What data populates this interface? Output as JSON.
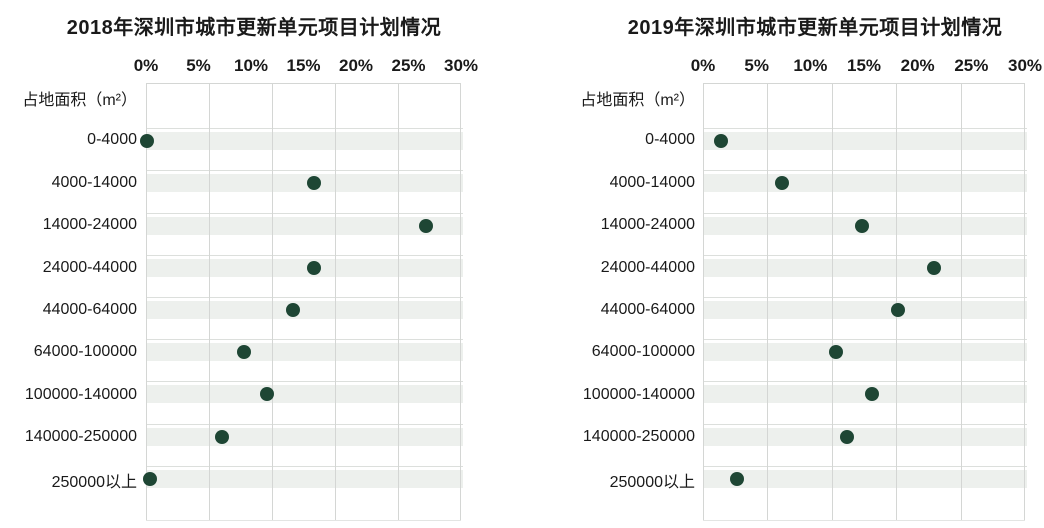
{
  "page": {
    "background": "#ffffff"
  },
  "colors": {
    "dot": "#1e4634",
    "band": "#edf0ed",
    "band_edge": "#dcdfdc",
    "gridline": "#d4d6d4",
    "text": "#1a1a1a"
  },
  "chart_data": [
    {
      "type": "scatter",
      "title": "2018年深圳市城市更新单元项目计划情况",
      "ylabel": "占地面积（m²）",
      "xlabel": "",
      "x_axis_position": "top",
      "x_ticks": [
        "0%",
        "5%",
        "10%",
        "15%",
        "20%",
        "25%",
        "30%"
      ],
      "xlim": [
        0,
        30
      ],
      "x_unit": "percent",
      "grid": true,
      "legend": "none",
      "categories": [
        "0-4000",
        "4000-14000",
        "14000-24000",
        "24000-44000",
        "44000-64000",
        "64000-100000",
        "100000-140000",
        "140000-250000",
        "250000以上"
      ],
      "values": [
        0.1,
        16.0,
        26.7,
        16.0,
        14.0,
        9.3,
        11.5,
        7.2,
        0.4
      ]
    },
    {
      "type": "scatter",
      "title": "2019年深圳市城市更新单元项目计划情况",
      "ylabel": "占地面积（m²）",
      "xlabel": "",
      "x_axis_position": "top",
      "x_ticks": [
        "0%",
        "5%",
        "10%",
        "15%",
        "20%",
        "25%",
        "30%"
      ],
      "xlim": [
        0,
        30
      ],
      "x_unit": "percent",
      "grid": true,
      "legend": "none",
      "categories": [
        "0-4000",
        "4000-14000",
        "14000-24000",
        "24000-44000",
        "44000-64000",
        "64000-100000",
        "100000-140000",
        "140000-250000",
        "250000以上"
      ],
      "values": [
        1.7,
        7.4,
        14.8,
        21.5,
        18.2,
        12.4,
        15.7,
        13.4,
        3.2
      ]
    }
  ]
}
